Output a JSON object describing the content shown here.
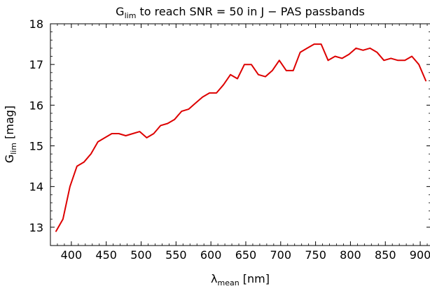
{
  "chart_data": {
    "type": "line",
    "title": {
      "main": "G",
      "sub": "lim",
      "rest": " to reach SNR = 50 in J − PAS passbands"
    },
    "xlabel": {
      "main": "λ",
      "sub": "mean",
      "rest": " [nm]"
    },
    "ylabel": {
      "main": "G",
      "sub": "lim",
      "rest": " [mag]"
    },
    "xlim": [
      370,
      915
    ],
    "ylim": [
      12.55,
      18.0
    ],
    "xticks": [
      "400",
      "450",
      "500",
      "550",
      "600",
      "650",
      "700",
      "750",
      "800",
      "850",
      "900"
    ],
    "yticks": [
      "13",
      "14",
      "15",
      "16",
      "17",
      "18"
    ],
    "grid": false,
    "line_color": "#dd0000",
    "x": [
      378,
      388,
      398,
      408,
      418,
      428,
      438,
      448,
      458,
      468,
      478,
      488,
      498,
      508,
      518,
      528,
      538,
      548,
      558,
      568,
      578,
      588,
      598,
      608,
      618,
      628,
      638,
      648,
      658,
      668,
      678,
      688,
      698,
      708,
      718,
      728,
      738,
      748,
      758,
      768,
      778,
      788,
      798,
      808,
      818,
      828,
      838,
      848,
      858,
      868,
      878,
      888,
      898,
      908
    ],
    "y": [
      12.9,
      13.2,
      14.0,
      14.5,
      14.6,
      14.8,
      15.1,
      15.2,
      15.3,
      15.3,
      15.25,
      15.3,
      15.35,
      15.2,
      15.3,
      15.5,
      15.55,
      15.65,
      15.85,
      15.9,
      16.05,
      16.2,
      16.3,
      16.3,
      16.5,
      16.75,
      16.65,
      17.0,
      17.0,
      16.75,
      16.7,
      16.85,
      17.1,
      16.85,
      16.85,
      17.3,
      17.4,
      17.5,
      17.5,
      17.1,
      17.2,
      17.15,
      17.25,
      17.4,
      17.35,
      17.4,
      17.3,
      17.1,
      17.15,
      17.1,
      17.1,
      17.2,
      17.0,
      16.6
    ]
  }
}
